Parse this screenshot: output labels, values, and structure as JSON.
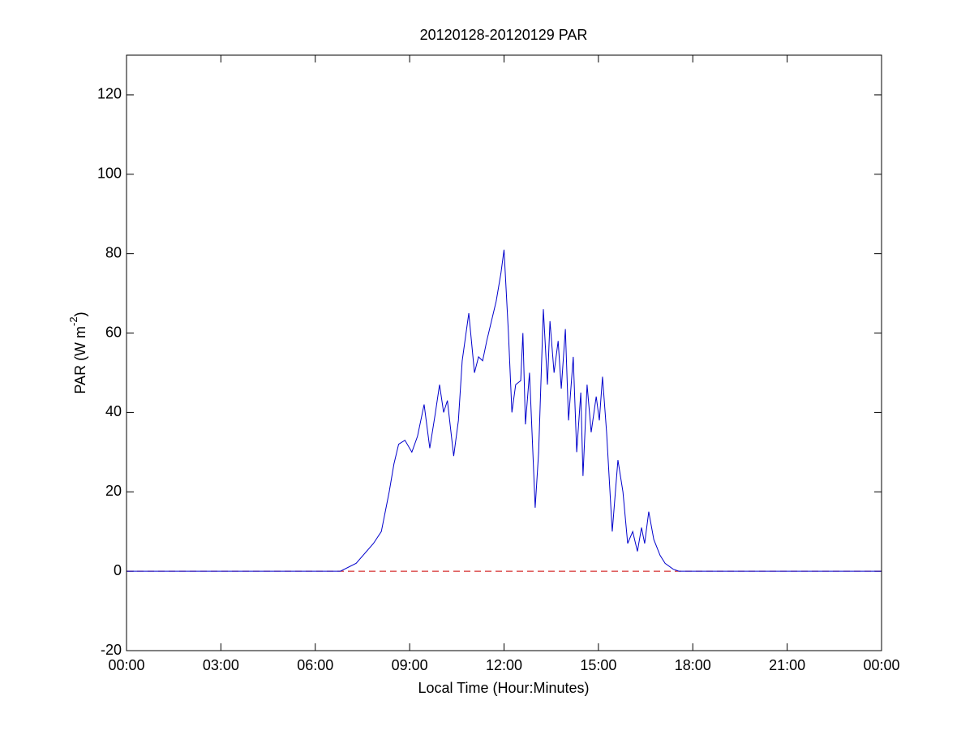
{
  "chart_data": {
    "type": "line",
    "title": "20120128-20120129 PAR",
    "xlabel": "Local Time (Hour:Minutes)",
    "ylabel": [
      "PAR (W m",
      "-2",
      ")"
    ],
    "xlim": [
      0,
      24
    ],
    "xticks": [
      {
        "value": 0,
        "label": "00:00"
      },
      {
        "value": 3,
        "label": "03:00"
      },
      {
        "value": 6,
        "label": "06:00"
      },
      {
        "value": 9,
        "label": "09:00"
      },
      {
        "value": 12,
        "label": "12:00"
      },
      {
        "value": 15,
        "label": "15:00"
      },
      {
        "value": 18,
        "label": "18:00"
      },
      {
        "value": 21,
        "label": "21:00"
      },
      {
        "value": 24,
        "label": "00:00"
      }
    ],
    "ylim": [
      -20,
      130
    ],
    "yticks": [
      -20,
      0,
      20,
      40,
      60,
      80,
      100,
      120
    ],
    "grid": false,
    "series": [
      {
        "color": "#0000cc",
        "dash": false,
        "x": [
          0,
          6.8,
          7.3,
          7.85,
          8.1,
          8.35,
          8.5,
          8.65,
          8.85,
          9.07,
          9.25,
          9.46,
          9.64,
          9.82,
          9.95,
          10.08,
          10.2,
          10.4,
          10.55,
          10.67,
          10.88,
          11.06,
          11.19,
          11.32,
          11.45,
          11.57,
          11.75,
          11.9,
          12.0,
          12.14,
          12.25,
          12.37,
          12.53,
          12.6,
          12.68,
          12.81,
          12.89,
          12.99,
          13.1,
          13.25,
          13.38,
          13.46,
          13.59,
          13.72,
          13.82,
          13.95,
          14.05,
          14.2,
          14.31,
          14.44,
          14.51,
          14.64,
          14.77,
          14.93,
          15.03,
          15.13,
          15.26,
          15.44,
          15.62,
          15.78,
          15.93,
          16.09,
          16.24,
          16.37,
          16.47,
          16.6,
          16.76,
          16.96,
          17.12,
          17.38,
          17.56,
          24
        ],
        "values": [
          0,
          0,
          2,
          7,
          10,
          20,
          27,
          32,
          33,
          30,
          34,
          42,
          31,
          40,
          47,
          40,
          43,
          29,
          38,
          53,
          65,
          50,
          54,
          53,
          58,
          62,
          68,
          75,
          81,
          60,
          40,
          47,
          48,
          60,
          37,
          50,
          35,
          16,
          30,
          66,
          47,
          63,
          50,
          58,
          46,
          61,
          38,
          54,
          30,
          45,
          24,
          47,
          35,
          44,
          38,
          49,
          35,
          10,
          28,
          20,
          7,
          10,
          5,
          11,
          7,
          15,
          8,
          4,
          2,
          0.5,
          0,
          0
        ]
      },
      {
        "color": "#cc0000",
        "dash": true,
        "x": [
          0,
          24
        ],
        "values": [
          0,
          0
        ]
      }
    ]
  }
}
